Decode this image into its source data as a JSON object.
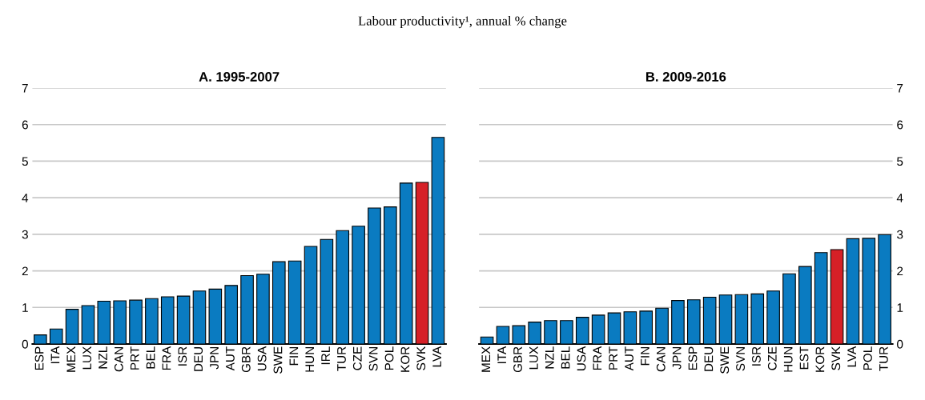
{
  "chart_data": [
    {
      "type": "bar",
      "title": "A. 1995-2007",
      "categories": [
        "ESP",
        "ITA",
        "MEX",
        "LUX",
        "NZL",
        "CAN",
        "PRT",
        "BEL",
        "FRA",
        "ISR",
        "DEU",
        "JPN",
        "AUT",
        "GBR",
        "USA",
        "SWE",
        "FIN",
        "HUN",
        "IRL",
        "TUR",
        "CZE",
        "SVN",
        "POL",
        "KOR",
        "SVK",
        "LVA"
      ],
      "values": [
        0.25,
        0.41,
        0.95,
        1.05,
        1.17,
        1.18,
        1.2,
        1.24,
        1.29,
        1.31,
        1.45,
        1.5,
        1.6,
        1.87,
        1.91,
        2.25,
        2.27,
        2.67,
        2.86,
        3.1,
        3.22,
        3.72,
        3.75,
        4.4,
        4.42,
        5.65
      ],
      "colors": [
        "#0a7bc1",
        "#0a7bc1",
        "#0a7bc1",
        "#0a7bc1",
        "#0a7bc1",
        "#0a7bc1",
        "#0a7bc1",
        "#0a7bc1",
        "#0a7bc1",
        "#0a7bc1",
        "#0a7bc1",
        "#0a7bc1",
        "#0a7bc1",
        "#0a7bc1",
        "#0a7bc1",
        "#0a7bc1",
        "#0a7bc1",
        "#0a7bc1",
        "#0a7bc1",
        "#0a7bc1",
        "#0a7bc1",
        "#0a7bc1",
        "#0a7bc1",
        "#0a7bc1",
        "#d62027",
        "#0a7bc1"
      ],
      "ylim": [
        0,
        7
      ],
      "yticks": [
        0,
        1,
        2,
        3,
        4,
        5,
        6,
        7
      ],
      "grid": "y"
    },
    {
      "type": "bar",
      "title": "B. 2009-2016",
      "categories": [
        "MEX",
        "ITA",
        "GBR",
        "LUX",
        "NZL",
        "BEL",
        "USA",
        "FRA",
        "PRT",
        "AUT",
        "FIN",
        "CAN",
        "JPN",
        "ESP",
        "DEU",
        "SWE",
        "SVN",
        "ISR",
        "CZE",
        "HUN",
        "EST",
        "KOR",
        "SVK",
        "LVA",
        "POL",
        "TUR"
      ],
      "values": [
        0.19,
        0.48,
        0.5,
        0.6,
        0.64,
        0.64,
        0.73,
        0.79,
        0.85,
        0.88,
        0.9,
        0.98,
        1.19,
        1.21,
        1.28,
        1.34,
        1.35,
        1.37,
        1.45,
        1.92,
        2.12,
        2.5,
        2.58,
        2.88,
        2.89,
        2.99
      ],
      "colors": [
        "#0a7bc1",
        "#0a7bc1",
        "#0a7bc1",
        "#0a7bc1",
        "#0a7bc1",
        "#0a7bc1",
        "#0a7bc1",
        "#0a7bc1",
        "#0a7bc1",
        "#0a7bc1",
        "#0a7bc1",
        "#0a7bc1",
        "#0a7bc1",
        "#0a7bc1",
        "#0a7bc1",
        "#0a7bc1",
        "#0a7bc1",
        "#0a7bc1",
        "#0a7bc1",
        "#0a7bc1",
        "#0a7bc1",
        "#0a7bc1",
        "#d62027",
        "#0a7bc1",
        "#0a7bc1",
        "#0a7bc1"
      ],
      "ylim": [
        0,
        7
      ],
      "yticks": [
        0,
        1,
        2,
        3,
        4,
        5,
        6,
        7
      ],
      "grid": "y",
      "annotations": [
        "Labour productivity¹, annual % change"
      ]
    }
  ]
}
